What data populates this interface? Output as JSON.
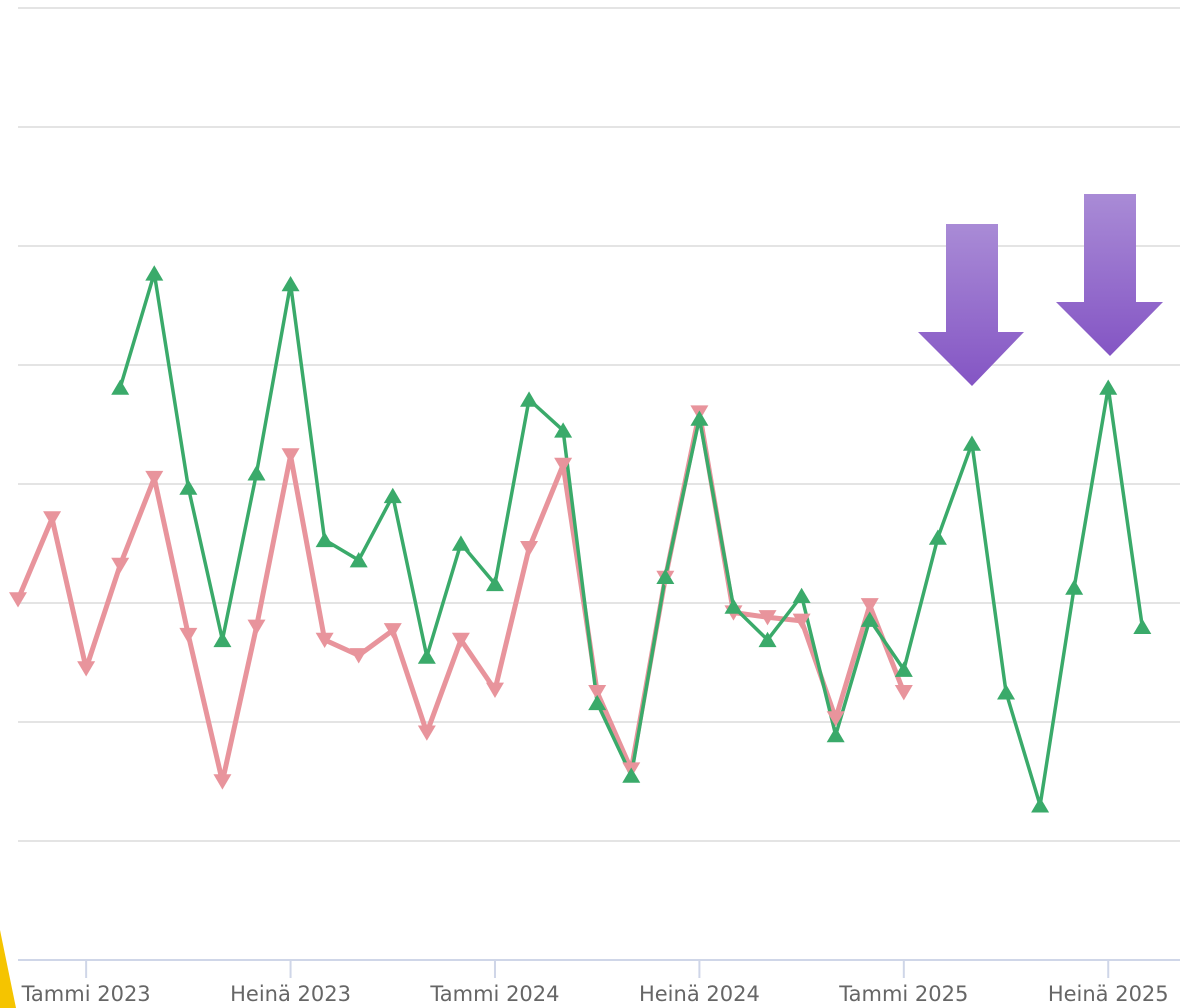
{
  "chart_data": {
    "type": "line",
    "categories": [
      null,
      null,
      "Tammi 2023",
      null,
      null,
      null,
      null,
      null,
      "Heinä 2023",
      null,
      null,
      null,
      null,
      null,
      "Tammi 2024",
      null,
      null,
      null,
      null,
      null,
      "Heinä 2024",
      null,
      null,
      null,
      null,
      null,
      "Tammi 2025",
      null,
      null,
      null,
      null,
      null,
      "Heinä 2025",
      null
    ],
    "series": [
      {
        "color": "#e8949c",
        "marker": "triangle-down",
        "values": [
          3.03,
          3.71,
          2.45,
          3.32,
          4.05,
          2.73,
          1.5,
          2.8,
          4.24,
          2.69,
          2.56,
          2.77,
          1.91,
          2.69,
          2.27,
          3.46,
          4.16,
          2.25,
          1.6,
          3.21,
          4.6,
          2.92,
          2.88,
          2.85,
          2.03,
          2.98,
          2.25,
          null,
          null,
          null,
          null,
          null,
          null,
          null
        ]
      },
      {
        "color": "#3aaa6a",
        "marker": "triangle-up",
        "values": [
          null,
          null,
          null,
          4.81,
          5.77,
          3.97,
          2.69,
          4.09,
          5.68,
          3.53,
          3.36,
          3.9,
          2.55,
          3.5,
          3.16,
          4.71,
          4.45,
          2.16,
          1.55,
          3.22,
          4.55,
          2.97,
          2.69,
          3.06,
          1.89,
          2.86,
          2.44,
          3.55,
          4.34,
          2.25,
          1.3,
          3.13,
          4.81,
          2.8
        ]
      }
    ],
    "ylim": [
      0,
      8
    ],
    "yticks": [
      0,
      1,
      2,
      3,
      4,
      5,
      6,
      7,
      8
    ],
    "grid": true
  }
}
